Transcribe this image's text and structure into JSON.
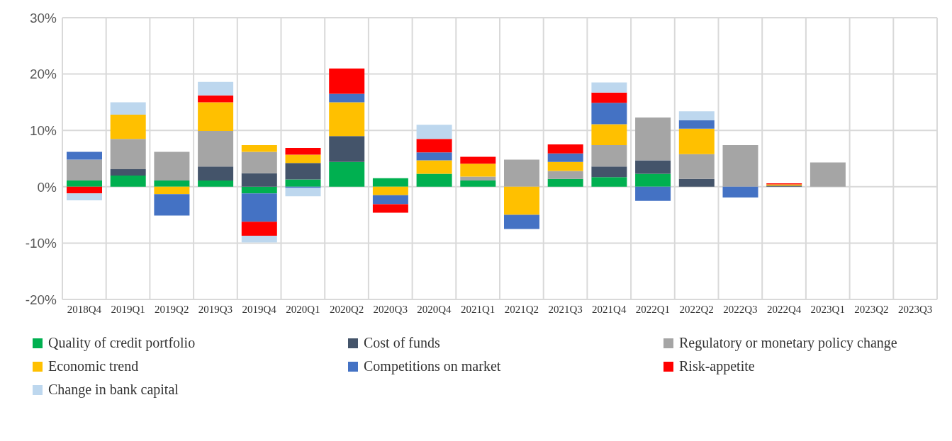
{
  "chart_data": {
    "type": "bar",
    "stacked": true,
    "categories": [
      "2018Q4",
      "2019Q1",
      "2019Q2",
      "2019Q3",
      "2019Q4",
      "2020Q1",
      "2020Q2",
      "2020Q3",
      "2020Q4",
      "2021Q1",
      "2021Q2",
      "2021Q3",
      "2021Q4",
      "2022Q1",
      "2022Q2",
      "2022Q3",
      "2022Q4",
      "2023Q1",
      "2023Q2",
      "2023Q3"
    ],
    "series": [
      {
        "name": "Quality of credit portfolio",
        "color": "#00b050",
        "values": [
          1.1,
          2.0,
          1.1,
          1.1,
          -1.2,
          1.3,
          4.4,
          1.5,
          2.3,
          1.1,
          null,
          1.4,
          1.7,
          2.3,
          null,
          null,
          null,
          null,
          null,
          null
        ]
      },
      {
        "name": "Cost of funds",
        "color": "#44546a",
        "values": [
          null,
          1.1,
          null,
          2.5,
          2.4,
          2.9,
          4.6,
          null,
          null,
          null,
          null,
          null,
          1.9,
          2.4,
          1.4,
          null,
          0.2,
          null,
          null,
          null
        ]
      },
      {
        "name": "Regulatory or monetary policy change",
        "color": "#a5a5a5",
        "values": [
          3.7,
          5.4,
          5.1,
          6.3,
          3.8,
          null,
          null,
          null,
          null,
          0.7,
          4.8,
          1.4,
          3.8,
          7.6,
          4.4,
          7.4,
          null,
          4.3,
          null,
          null
        ]
      },
      {
        "name": "Economic trend",
        "color": "#ffc000",
        "values": [
          null,
          4.3,
          -1.3,
          5.1,
          1.2,
          1.5,
          6.0,
          -1.5,
          2.4,
          2.3,
          -5.0,
          1.6,
          3.7,
          null,
          4.5,
          null,
          0.2,
          null,
          null,
          null
        ]
      },
      {
        "name": "Competitions on market",
        "color": "#4472c4",
        "values": [
          1.4,
          null,
          -3.8,
          null,
          -5.0,
          -0.2,
          1.5,
          -1.6,
          1.4,
          null,
          -2.5,
          1.5,
          3.8,
          -2.5,
          1.5,
          -1.9,
          null,
          null,
          null,
          null
        ]
      },
      {
        "name": "Risk-appetite",
        "color": "#ff0000",
        "values": [
          -1.2,
          null,
          null,
          1.2,
          -2.5,
          1.2,
          4.5,
          -1.5,
          2.4,
          1.2,
          null,
          1.6,
          1.8,
          null,
          null,
          null,
          0.2,
          null,
          null,
          null
        ]
      },
      {
        "name": "Change in bank capital",
        "color": "#bdd7ee",
        "values": [
          -1.2,
          2.2,
          null,
          2.4,
          -1.2,
          -1.5,
          null,
          null,
          2.5,
          null,
          null,
          null,
          1.8,
          null,
          1.6,
          null,
          null,
          null,
          null,
          null
        ]
      }
    ],
    "ylim": [
      -20,
      30
    ],
    "yticks": [
      {
        "value": -20,
        "label": "-20%"
      },
      {
        "value": -10,
        "label": "-10%"
      },
      {
        "value": 0,
        "label": "0%"
      },
      {
        "value": 10,
        "label": "10%"
      },
      {
        "value": 20,
        "label": "20%"
      },
      {
        "value": 30,
        "label": "30%"
      }
    ],
    "grid": true,
    "legend": "bottom"
  }
}
